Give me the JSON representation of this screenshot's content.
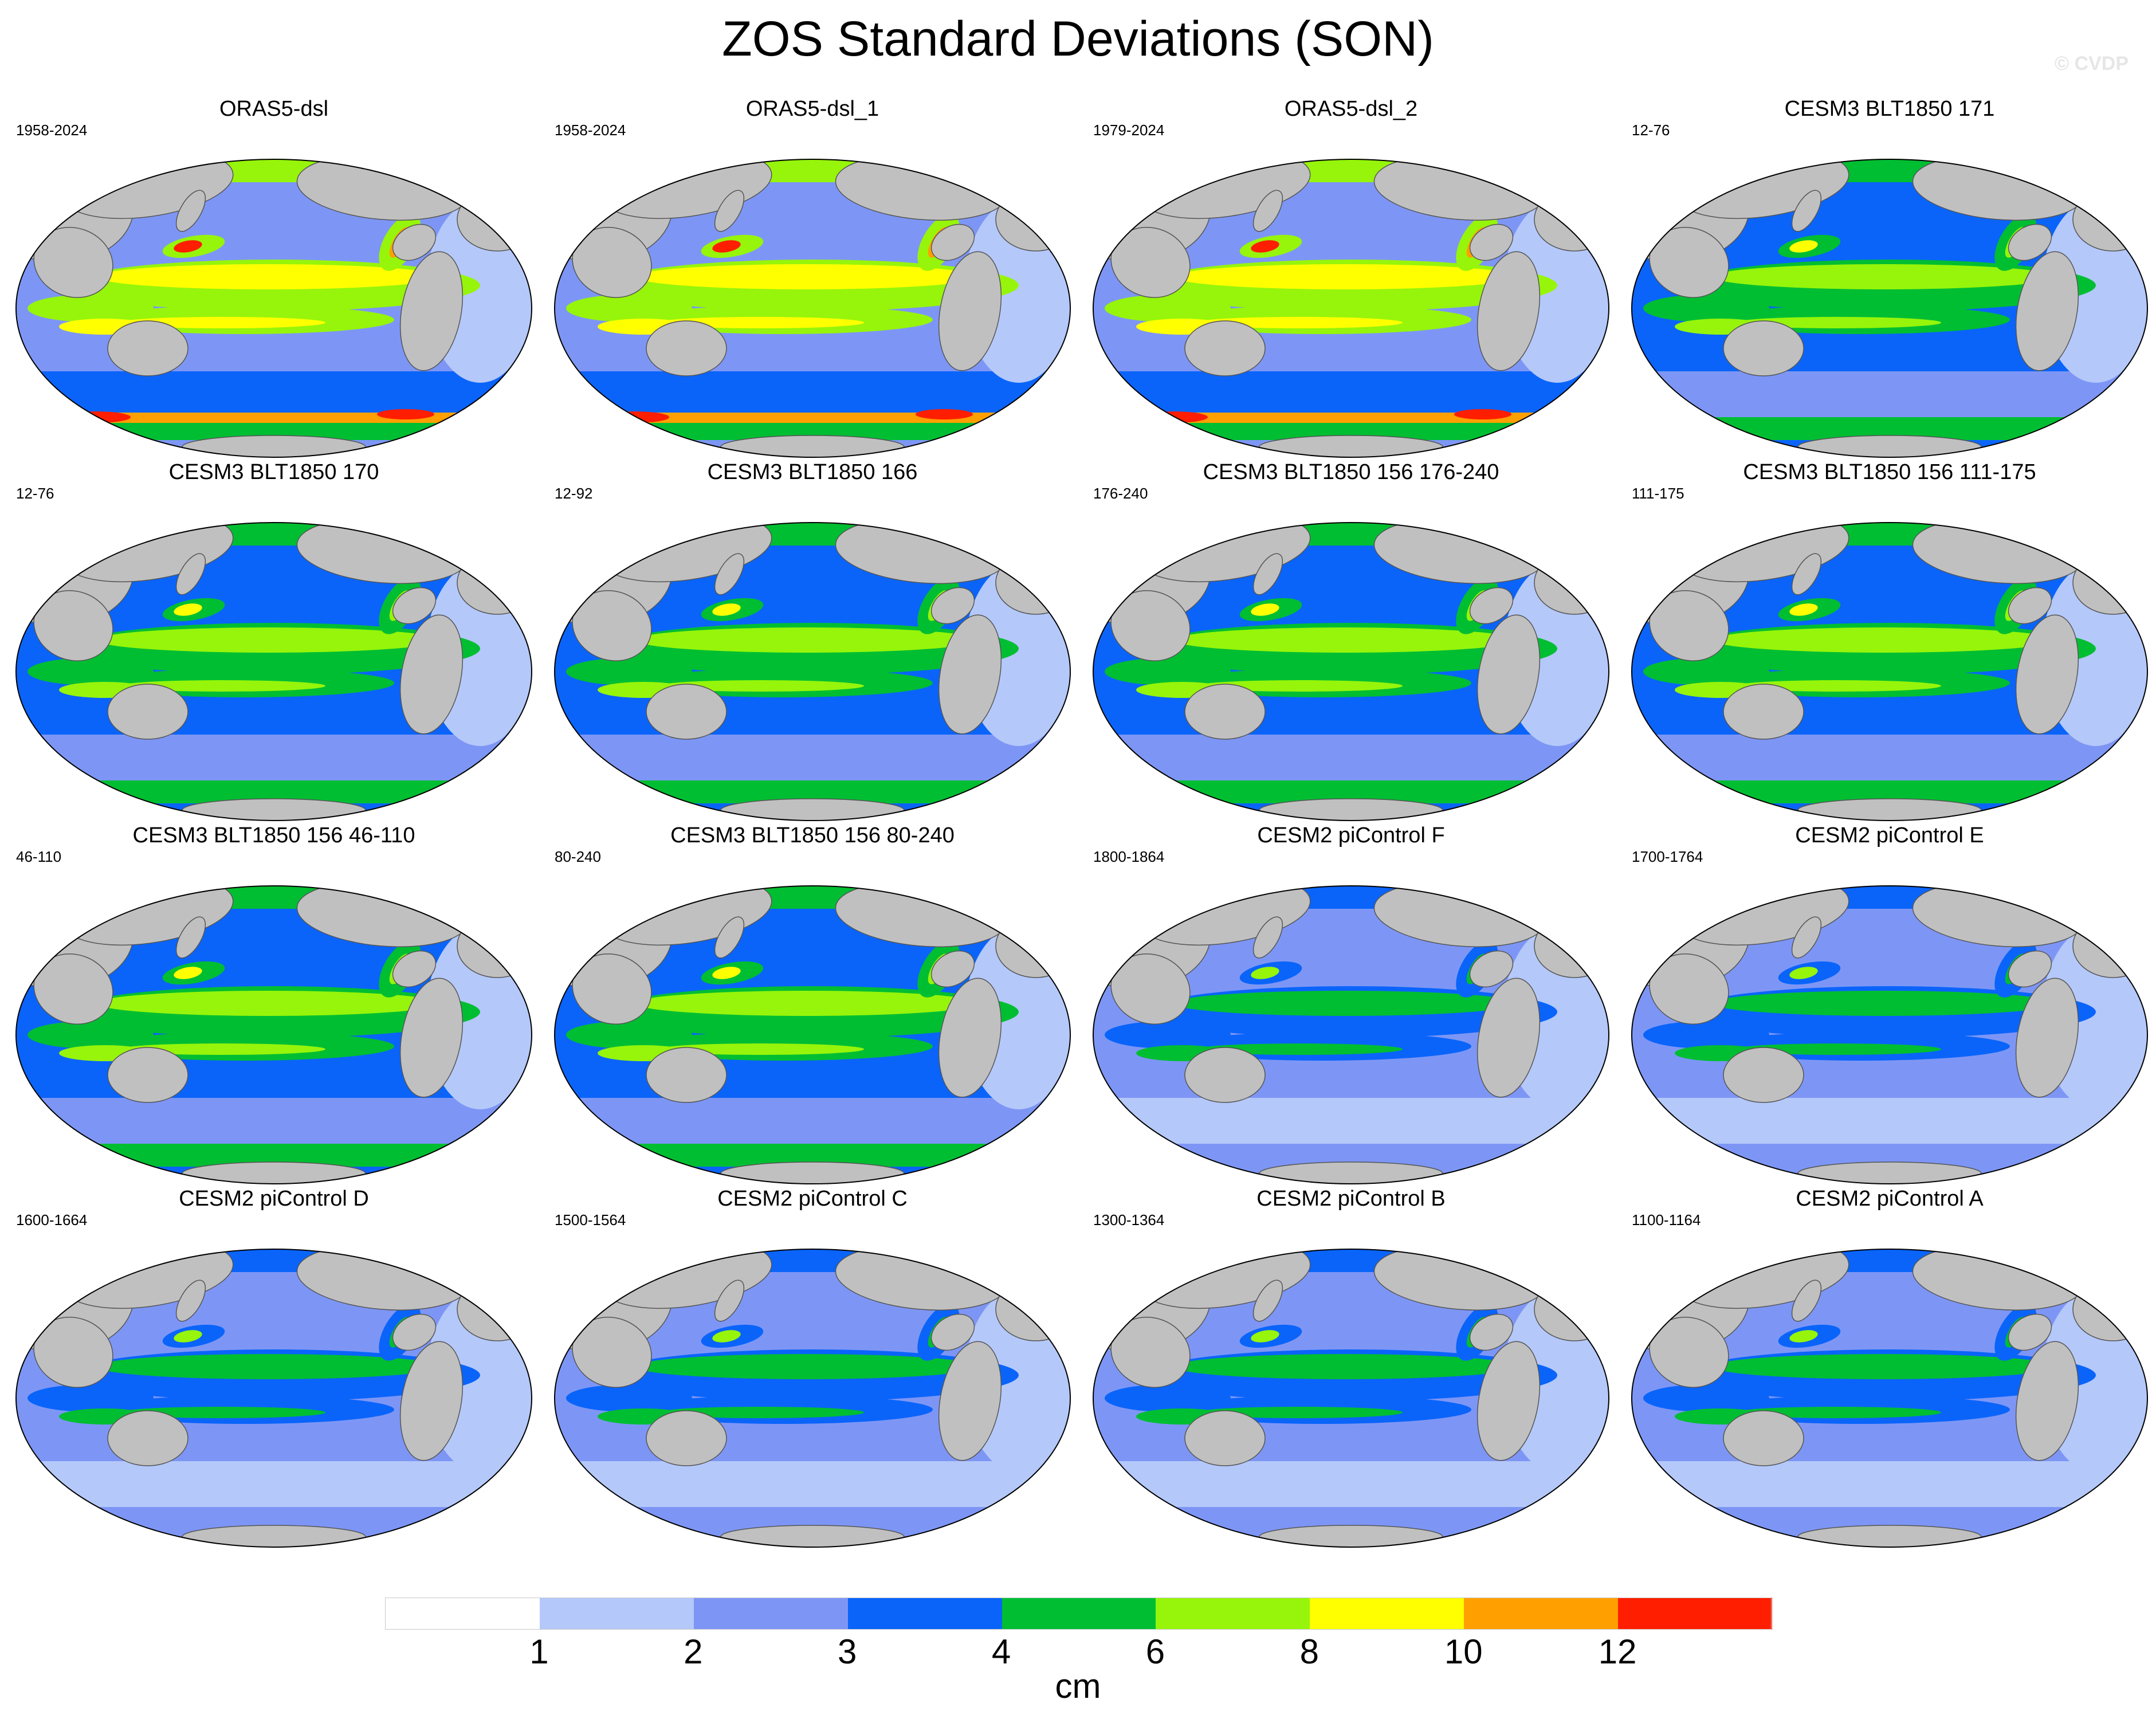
{
  "title": "ZOS Standard Deviations (SON)",
  "watermark": "© CVDP",
  "colors": {
    "land": "#c0c0c0",
    "coast": "#555555",
    "bins": [
      "#ffffff",
      "#b4c8fa",
      "#7d96f5",
      "#0a64fa",
      "#00be32",
      "#96f50a",
      "#ffff00",
      "#ffa000",
      "#ff1e00"
    ]
  },
  "panels": [
    {
      "name": "ORAS5-dsl",
      "years": "1958-2024",
      "style": "reanalysis"
    },
    {
      "name": "ORAS5-dsl_1",
      "years": "1958-2024",
      "style": "reanalysis"
    },
    {
      "name": "ORAS5-dsl_2",
      "years": "1979-2024",
      "style": "reanalysis"
    },
    {
      "name": "CESM3 BLT1850 171",
      "years": "12-76",
      "style": "cesm3"
    },
    {
      "name": "CESM3 BLT1850 170",
      "years": "12-76",
      "style": "cesm3"
    },
    {
      "name": "CESM3 BLT1850 166",
      "years": "12-92",
      "style": "cesm3"
    },
    {
      "name": "CESM3 BLT1850 156 176-240",
      "years": "176-240",
      "style": "cesm3"
    },
    {
      "name": "CESM3 BLT1850 156 111-175",
      "years": "111-175",
      "style": "cesm3"
    },
    {
      "name": "CESM3 BLT1850 156 46-110",
      "years": "46-110",
      "style": "cesm3"
    },
    {
      "name": "CESM3 BLT1850 156 80-240",
      "years": "80-240",
      "style": "cesm3"
    },
    {
      "name": "CESM2 piControl F",
      "years": "1800-1864",
      "style": "cesm2"
    },
    {
      "name": "CESM2 piControl E",
      "years": "1700-1764",
      "style": "cesm2"
    },
    {
      "name": "CESM2 piControl D",
      "years": "1600-1664",
      "style": "cesm2"
    },
    {
      "name": "CESM2 piControl C",
      "years": "1500-1564",
      "style": "cesm2"
    },
    {
      "name": "CESM2 piControl B",
      "years": "1300-1364",
      "style": "cesm2"
    },
    {
      "name": "CESM2 piControl A",
      "years": "1100-1164",
      "style": "cesm2"
    }
  ],
  "colorbar": {
    "ticks": [
      "1",
      "2",
      "3",
      "4",
      "6",
      "8",
      "10",
      "12"
    ],
    "unit": "cm"
  }
}
